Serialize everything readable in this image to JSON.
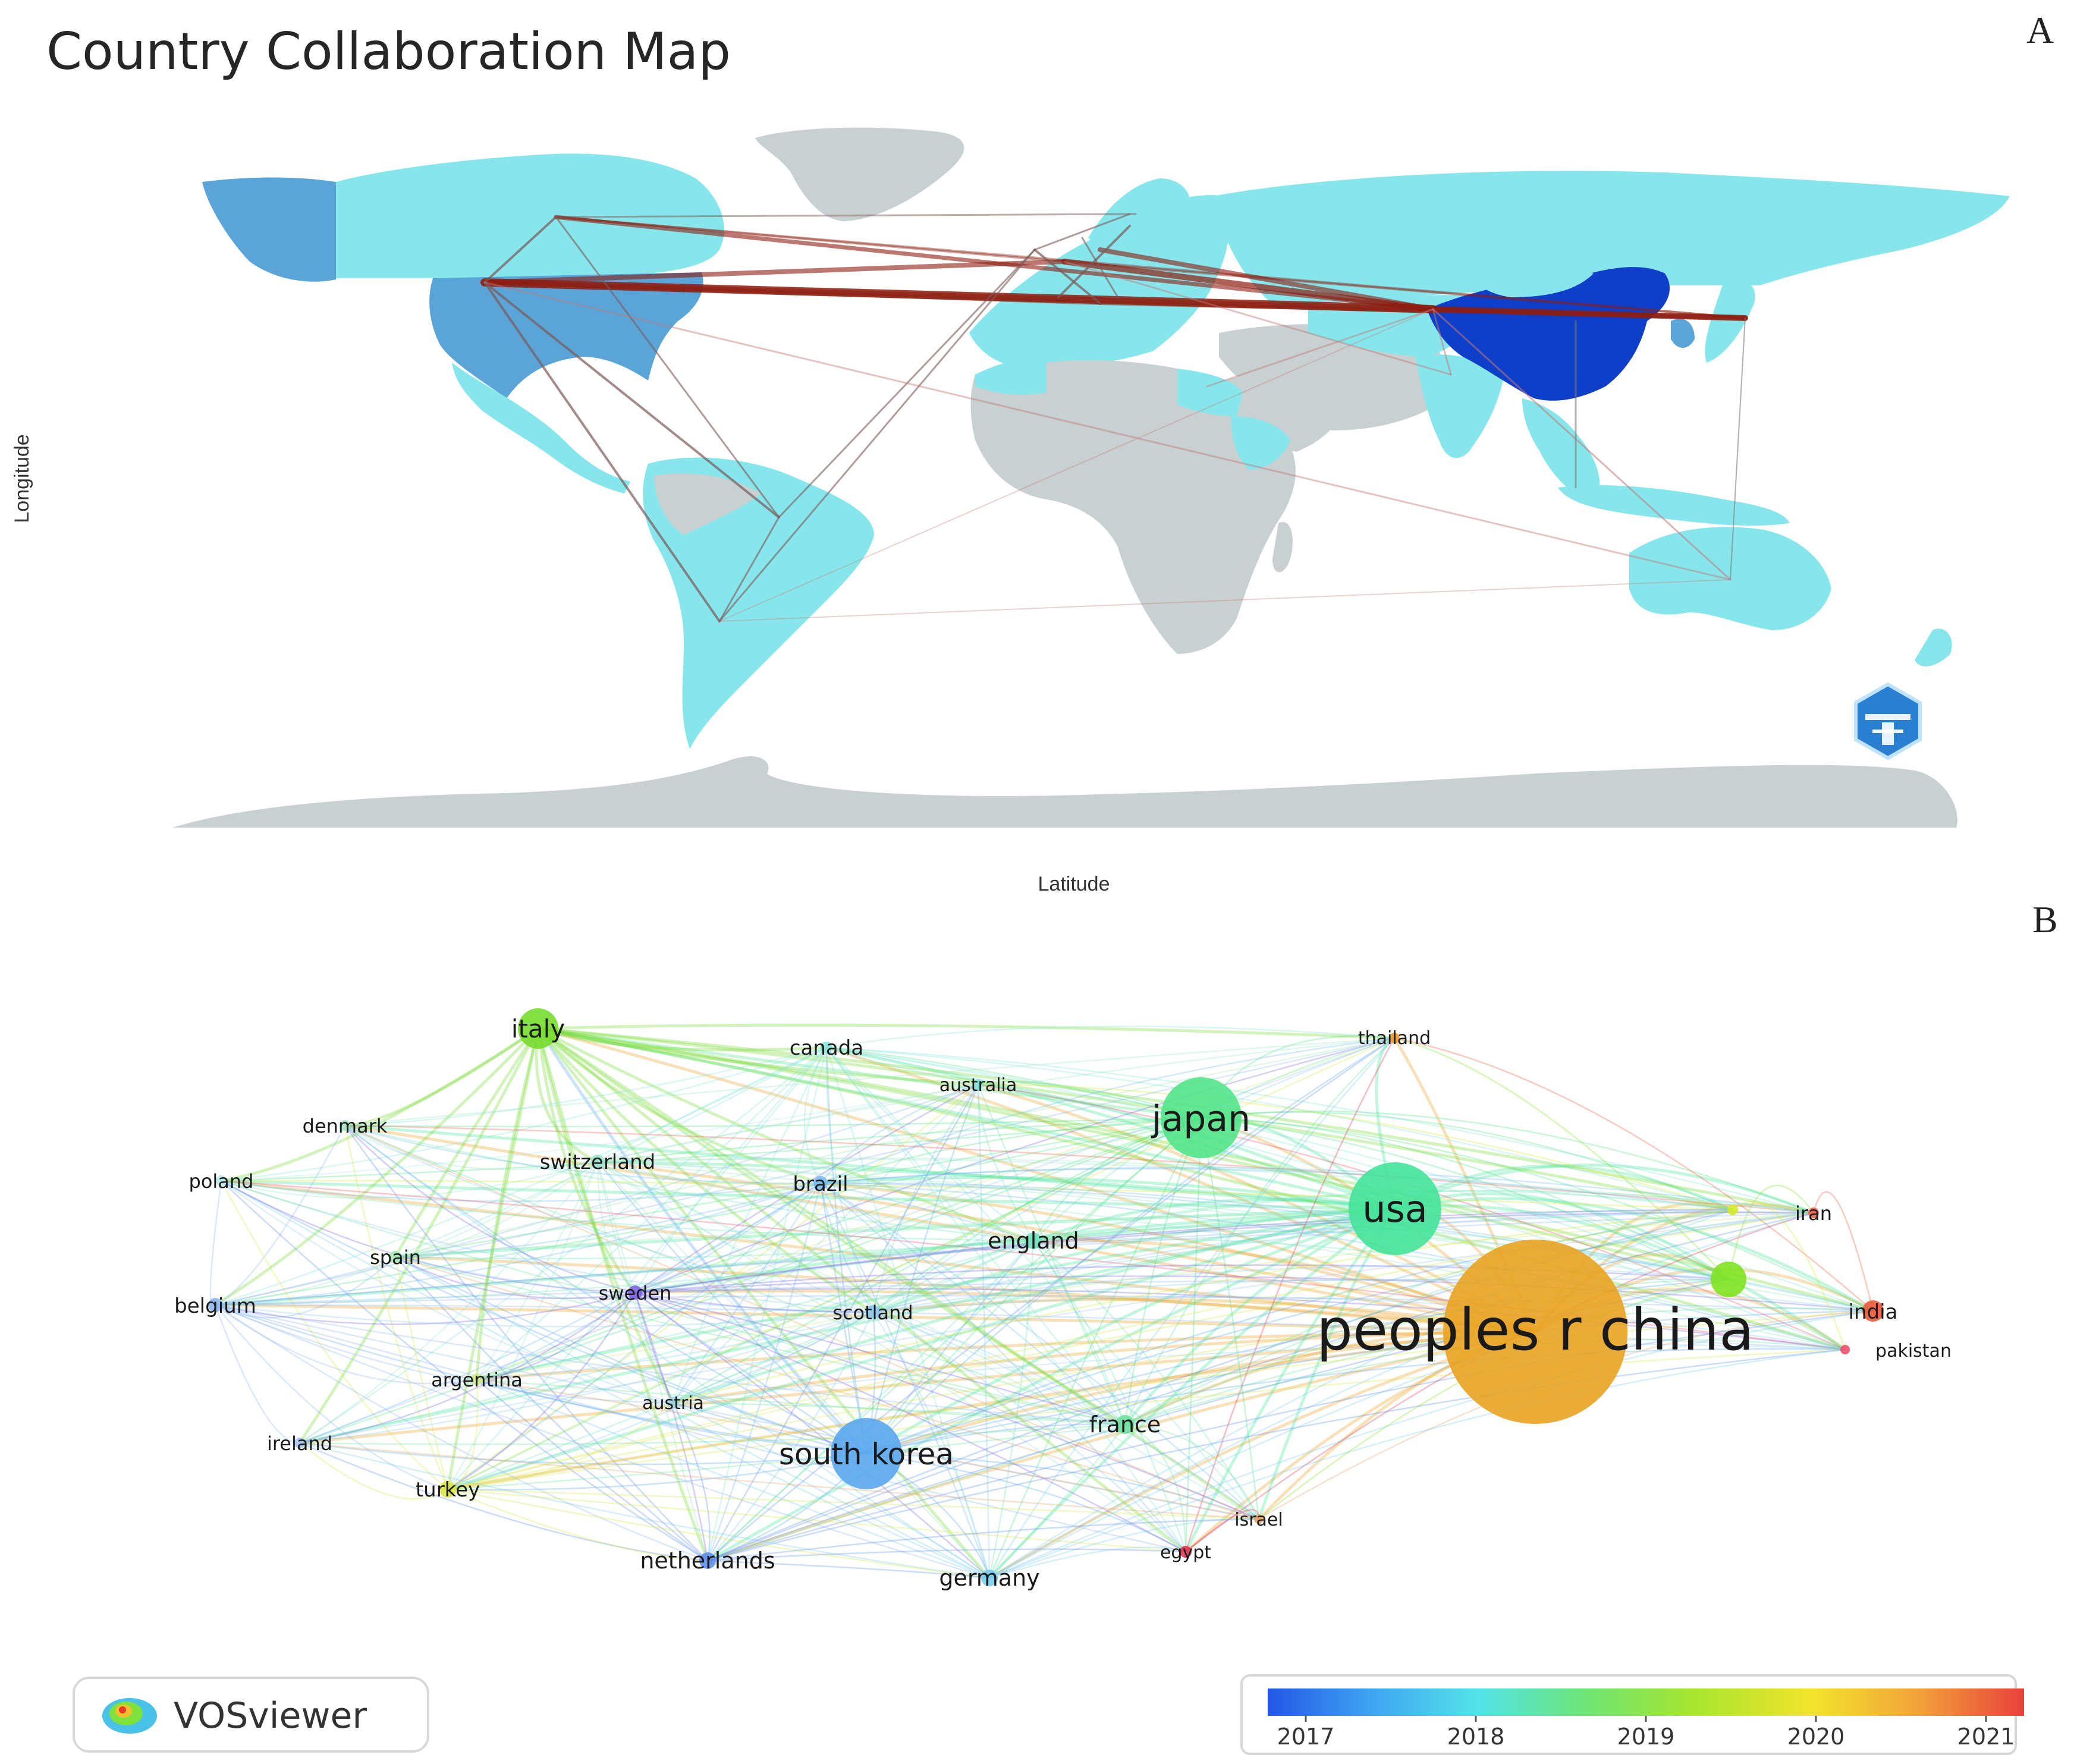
{
  "panel_a": {
    "letter": "A",
    "title": "Country Collaboration Map",
    "x_axis_label": "Latitude",
    "y_axis_label": "Longitude",
    "colors": {
      "ocean": "#ffffff",
      "no_data_land": "#c8d0d1",
      "low": "#87e6ec",
      "mid": "#5aa4d7",
      "high": "#0f3ec9",
      "link": "#8e1d10"
    },
    "badge_icon": "bibliometrix-hexagon-logo"
  },
  "panel_b": {
    "letter": "B",
    "nodes": [
      {
        "id": "china",
        "label": "peoples r china",
        "color": "#e9a321"
      },
      {
        "id": "usa",
        "label": "usa",
        "color": "#44e39a"
      },
      {
        "id": "japan",
        "label": "japan",
        "color": "#52e489"
      },
      {
        "id": "south_korea",
        "label": "south korea",
        "color": "#5aa7f0"
      },
      {
        "id": "italy",
        "label": "italy",
        "color": "#77db2e"
      },
      {
        "id": "canada",
        "label": "canada",
        "color": "#86e3d8"
      },
      {
        "id": "australia",
        "label": "australia",
        "color": "#86e3d8"
      },
      {
        "id": "thailand",
        "label": "thailand",
        "color": "#f29a2e"
      },
      {
        "id": "denmark",
        "label": "denmark",
        "color": "#a3e6c3"
      },
      {
        "id": "poland",
        "label": "poland",
        "color": "#b9e9ec"
      },
      {
        "id": "switzerland",
        "label": "switzerland",
        "color": "#9fe3cd"
      },
      {
        "id": "brazil",
        "label": "brazil",
        "color": "#74bcf4"
      },
      {
        "id": "england",
        "label": "england",
        "color": "#73e2bf"
      },
      {
        "id": "iran",
        "label": "iran",
        "color": "#f06050"
      },
      {
        "id": "spain",
        "label": "spain",
        "color": "#a7e7b4"
      },
      {
        "id": "sweden",
        "label": "sweden",
        "color": "#7d63e6"
      },
      {
        "id": "scotland",
        "label": "scotland",
        "color": "#8fc9ee"
      },
      {
        "id": "india",
        "label": "india",
        "color": "#ea5a3a"
      },
      {
        "id": "pakistan",
        "label": "pakistan",
        "color": "#ee4f6a"
      },
      {
        "id": "belgium",
        "label": "belgium",
        "color": "#8fb6ef"
      },
      {
        "id": "argentina",
        "label": "argentina",
        "color": "#cde98a"
      },
      {
        "id": "austria",
        "label": "austria",
        "color": "#9fd3e3"
      },
      {
        "id": "france",
        "label": "france",
        "color": "#6fe1a1"
      },
      {
        "id": "ireland",
        "label": "ireland",
        "color": "#a9c5f3"
      },
      {
        "id": "turkey",
        "label": "turkey",
        "color": "#d9e545"
      },
      {
        "id": "israel",
        "label": "israel",
        "color": "#e3a56a"
      },
      {
        "id": "egypt",
        "label": "egypt",
        "color": "#e0344f"
      },
      {
        "id": "netherlands",
        "label": "netherlands",
        "color": "#5f8fed"
      },
      {
        "id": "germany",
        "label": "germany",
        "color": "#79cdf0"
      },
      {
        "id": "unlabeled_green",
        "label": "",
        "color": "#7ee321"
      },
      {
        "id": "unlabeled_yellow",
        "label": "",
        "color": "#d4ea2a"
      }
    ],
    "colorbar": {
      "ticks": [
        "2017",
        "2018",
        "2019",
        "2020",
        "2021"
      ],
      "gradient": [
        "#2356e6",
        "#3fa6f2",
        "#53e3e8",
        "#6ee577",
        "#a6e52f",
        "#f2e42b",
        "#f2a23a",
        "#e8413a"
      ]
    },
    "logo": {
      "text": "VOSviewer",
      "icon": "vosviewer-density-icon"
    }
  }
}
